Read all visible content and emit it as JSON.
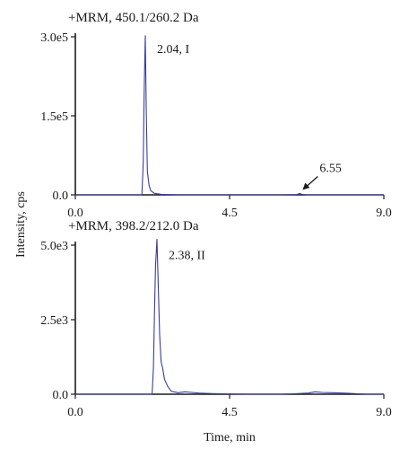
{
  "colors": {
    "trace": "#3a3d9b",
    "axis": "#1a1a1a",
    "background": "#ffffff"
  },
  "chart_data": {
    "type": "line",
    "ylabel": "Intensity, cps",
    "xlabel": "Time, min",
    "panels": [
      {
        "title": "+MRM, 450.1/260.2 Da",
        "xlim": [
          0,
          9
        ],
        "ylim": [
          0,
          300000
        ],
        "x_ticks": [
          0,
          4.5,
          9
        ],
        "x_tick_labels": [
          "0.0",
          "4.5",
          "9.0"
        ],
        "y_ticks": [
          0,
          150000,
          300000
        ],
        "y_tick_labels": [
          "0.0",
          "1.5e5",
          "3.0e5"
        ],
        "annotations": [
          {
            "text": "2.04, I",
            "x": 2.04,
            "y": 302000,
            "arrow": false
          },
          {
            "text": "6.55",
            "x": 6.55,
            "y": 2500,
            "arrow": true
          }
        ],
        "series": [
          {
            "x": [
              0,
              0.5,
              1.0,
              1.5,
              1.9,
              1.94,
              1.98,
              2.01,
              2.04,
              2.07,
              2.1,
              2.15,
              2.2,
              2.3,
              2.5,
              3.0,
              4.0,
              5.0,
              6.0,
              6.45,
              6.55,
              6.62,
              6.75,
              7.5,
              8.5,
              9.0
            ],
            "y": [
              0,
              0,
              0,
              0,
              0,
              0,
              60000,
              200000,
              302000,
              160000,
              45000,
              18000,
              8000,
              3000,
              1000,
              0,
              0,
              0,
              0,
              500,
              2500,
              800,
              0,
              0,
              0,
              0
            ]
          }
        ]
      },
      {
        "title": "+MRM, 398.2/212.0 Da",
        "xlim": [
          0,
          9
        ],
        "ylim": [
          0,
          5000
        ],
        "x_ticks": [
          0,
          4.5,
          9
        ],
        "x_tick_labels": [
          "0.0",
          "4.5",
          "9.0"
        ],
        "y_ticks": [
          0,
          2500,
          5000
        ],
        "y_tick_labels": [
          "0.0",
          "2.5e3",
          "5.0e3"
        ],
        "annotations": [
          {
            "text": "2.38, II",
            "x": 2.38,
            "y": 5100,
            "arrow": false
          }
        ],
        "series": [
          {
            "x": [
              0,
              0.5,
              1.0,
              1.5,
              2.0,
              2.24,
              2.28,
              2.31,
              2.34,
              2.38,
              2.42,
              2.46,
              2.5,
              2.55,
              2.6,
              2.7,
              2.8,
              3.0,
              3.2,
              3.4,
              3.6,
              3.8,
              4.0,
              4.5,
              5.0,
              5.5,
              6.0,
              6.5,
              6.8,
              7.0,
              7.2,
              7.5,
              7.8,
              8.0,
              8.5,
              9.0
            ],
            "y": [
              0,
              0,
              0,
              0,
              0,
              0,
              900,
              2800,
              4300,
              5200,
              3600,
              2000,
              1100,
              850,
              500,
              250,
              100,
              50,
              80,
              60,
              40,
              30,
              20,
              10,
              0,
              0,
              0,
              20,
              40,
              80,
              60,
              50,
              40,
              30,
              0,
              0
            ]
          }
        ]
      }
    ]
  }
}
